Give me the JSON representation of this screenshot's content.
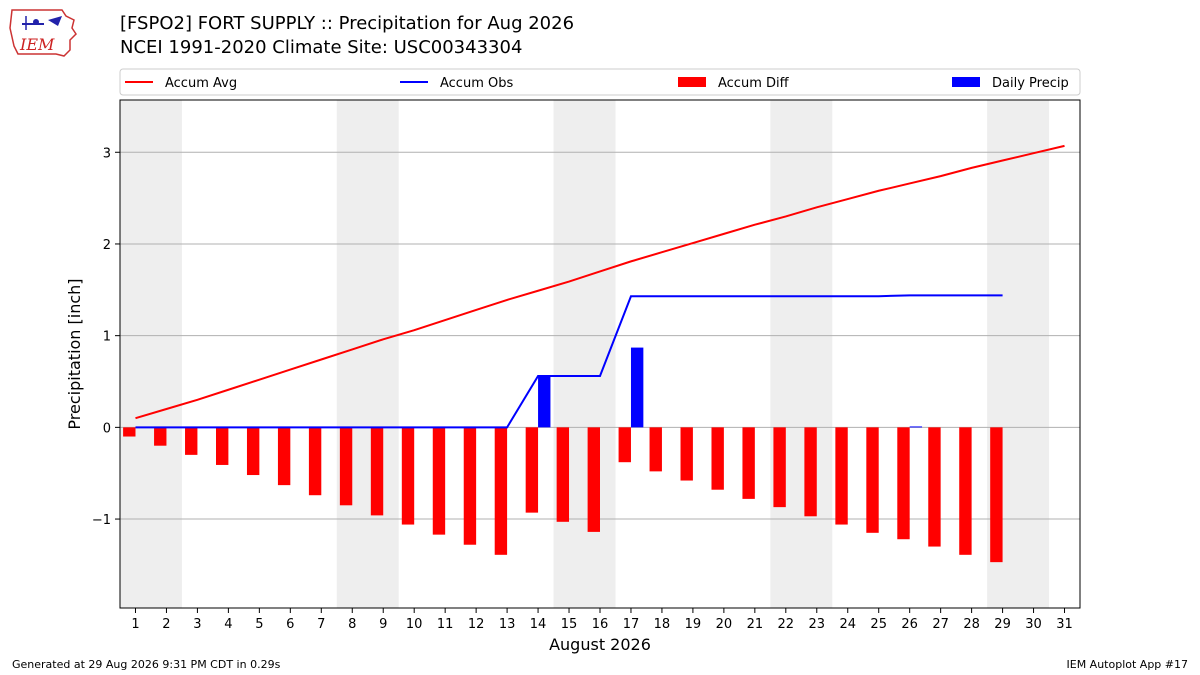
{
  "header": {
    "title": "[FSPO2] FORT SUPPLY :: Precipitation for Aug 2026",
    "subtitle": "NCEI 1991-2020 Climate Site: USC00343304",
    "logo_text": "IEM"
  },
  "footer": {
    "generated": "Generated at 29 Aug 2026 9:31 PM CDT in 0.29s",
    "app": "IEM Autoplot App #17"
  },
  "chart_data": {
    "type": "bar",
    "xlabel": "August 2026",
    "ylabel": "Precipitation [inch]",
    "x_ticks": [
      1,
      2,
      3,
      4,
      5,
      6,
      7,
      8,
      9,
      10,
      11,
      12,
      13,
      14,
      15,
      16,
      17,
      18,
      19,
      20,
      21,
      22,
      23,
      24,
      25,
      26,
      27,
      28,
      29,
      30,
      31
    ],
    "y_ticks": [
      -1,
      0,
      1,
      2,
      3
    ],
    "y_tick_labels": [
      "−1",
      "0",
      "1",
      "2",
      "3"
    ],
    "xlim": [
      0.5,
      31.5
    ],
    "ylim": [
      -1.97,
      3.57
    ],
    "grid": "horizontal",
    "legend_position": "top",
    "weekend_shading": [
      [
        0.5,
        2.5
      ],
      [
        7.5,
        9.5
      ],
      [
        14.5,
        16.5
      ],
      [
        21.5,
        23.5
      ],
      [
        28.5,
        30.5
      ]
    ],
    "series": [
      {
        "name": "Accum Avg",
        "kind": "line",
        "color": "#ff0000",
        "x": [
          1,
          2,
          3,
          4,
          5,
          6,
          7,
          8,
          9,
          10,
          11,
          12,
          13,
          14,
          15,
          16,
          17,
          18,
          19,
          20,
          21,
          22,
          23,
          24,
          25,
          26,
          27,
          28,
          29,
          30,
          31
        ],
        "values": [
          0.1,
          0.2,
          0.3,
          0.41,
          0.52,
          0.63,
          0.74,
          0.85,
          0.96,
          1.06,
          1.17,
          1.28,
          1.39,
          1.49,
          1.59,
          1.7,
          1.81,
          1.91,
          2.01,
          2.11,
          2.21,
          2.3,
          2.4,
          2.49,
          2.58,
          2.66,
          2.74,
          2.83,
          2.91,
          2.99,
          3.07
        ]
      },
      {
        "name": "Accum Obs",
        "kind": "line",
        "color": "#0000ff",
        "x": [
          1,
          2,
          3,
          4,
          5,
          6,
          7,
          8,
          9,
          10,
          11,
          12,
          13,
          14,
          15,
          16,
          17,
          18,
          19,
          20,
          21,
          22,
          23,
          24,
          25,
          26,
          27,
          28,
          29
        ],
        "values": [
          0,
          0,
          0,
          0,
          0,
          0,
          0,
          0,
          0,
          0,
          0,
          0,
          0,
          0.56,
          0.56,
          0.56,
          1.43,
          1.43,
          1.43,
          1.43,
          1.43,
          1.43,
          1.43,
          1.43,
          1.43,
          1.44,
          1.44,
          1.44,
          1.44
        ]
      },
      {
        "name": "Accum Diff",
        "kind": "bar",
        "color": "#ff0000",
        "x": [
          1,
          2,
          3,
          4,
          5,
          6,
          7,
          8,
          9,
          10,
          11,
          12,
          13,
          14,
          15,
          16,
          17,
          18,
          19,
          20,
          21,
          22,
          23,
          24,
          25,
          26,
          27,
          28,
          29
        ],
        "values": [
          -0.1,
          -0.2,
          -0.3,
          -0.41,
          -0.52,
          -0.63,
          -0.74,
          -0.85,
          -0.96,
          -1.06,
          -1.17,
          -1.28,
          -1.39,
          -0.93,
          -1.03,
          -1.14,
          -0.38,
          -0.48,
          -0.58,
          -0.68,
          -0.78,
          -0.87,
          -0.97,
          -1.06,
          -1.15,
          -1.22,
          -1.3,
          -1.39,
          -1.47
        ]
      },
      {
        "name": "Daily Precip",
        "kind": "bar",
        "color": "#0000ff",
        "x": [
          14,
          17,
          26
        ],
        "values": [
          0.56,
          0.87,
          0.01
        ]
      }
    ]
  }
}
